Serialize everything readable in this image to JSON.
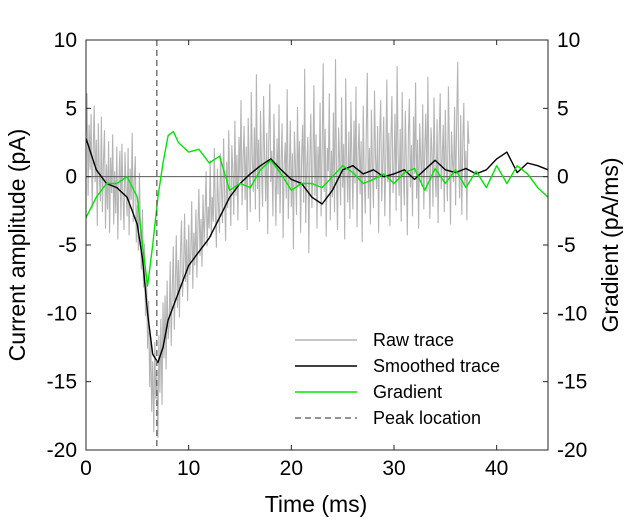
{
  "chart_data": {
    "type": "line",
    "xlabel": "Time (ms)",
    "ylabel_left": "Current amplitude (pA)",
    "ylabel_right": "Gradient (pA/ms)",
    "xlim": [
      0,
      45
    ],
    "ylim_left": [
      -20,
      10
    ],
    "ylim_right": [
      -20,
      10
    ],
    "xticks": [
      "0",
      "10",
      "20",
      "30",
      "40"
    ],
    "yticks_left": [
      "-20",
      "-15",
      "-10",
      "-5",
      "0",
      "5",
      "10"
    ],
    "yticks_right": [
      "-20",
      "-15",
      "-10",
      "-5",
      "0",
      "5",
      "10"
    ],
    "zero_line": true,
    "grid": false,
    "legend_position": "bottom-right",
    "legend": [
      "Raw trace",
      "Smoothed trace",
      "Gradient",
      "Peak location"
    ],
    "colors": {
      "raw": "#b4b4b4",
      "smoothed": "#000000",
      "gradient": "#00e600",
      "peak": "#555555",
      "axes": "#262626"
    },
    "peak_location_x": 6.9,
    "series": [
      {
        "name": "Smoothed trace",
        "axis": "left",
        "x": [
          0,
          1,
          2,
          3,
          4,
          5,
          5.5,
          6,
          6.5,
          7,
          7.5,
          8,
          9,
          10,
          11,
          12,
          13,
          14,
          15,
          16,
          17,
          18,
          19,
          20,
          21,
          22,
          23,
          24,
          25,
          26,
          27,
          28,
          29,
          30,
          31,
          32,
          33,
          34,
          35,
          36,
          37,
          38,
          39,
          40,
          41,
          42,
          43,
          44,
          45
        ],
        "y": [
          2.8,
          0.5,
          -0.5,
          -0.8,
          -1.5,
          -3.5,
          -6,
          -10,
          -13,
          -13.6,
          -12.5,
          -10.5,
          -8.5,
          -6.5,
          -5.5,
          -4.5,
          -3,
          -1.5,
          -0.5,
          0.2,
          0.8,
          1.3,
          0.5,
          -0.2,
          -0.5,
          -1.5,
          -2,
          -1,
          0.5,
          0.8,
          0.2,
          0.5,
          0,
          0.2,
          0.5,
          -0.2,
          0.5,
          1.2,
          0.5,
          0.3,
          0.6,
          0.2,
          0.5,
          1.3,
          1.8,
          0.3,
          1,
          0.8,
          0.5
        ]
      },
      {
        "name": "Gradient",
        "axis": "right",
        "x": [
          0,
          1,
          2,
          3,
          4,
          5,
          5.5,
          6,
          6.5,
          7,
          7.5,
          8,
          8.5,
          9,
          10,
          11,
          12,
          13,
          14,
          15,
          16,
          17,
          18,
          19,
          20,
          21,
          22,
          23,
          24,
          25,
          26,
          27,
          28,
          29,
          30,
          31,
          32,
          33,
          34,
          35,
          36,
          37,
          38,
          39,
          40,
          41,
          42,
          43,
          44,
          45
        ],
        "y": [
          -3,
          -1.5,
          -0.5,
          -0.5,
          0,
          -1.5,
          -5,
          -8,
          -5,
          -1.5,
          1,
          3,
          3.3,
          2.5,
          1.8,
          2,
          1,
          1.5,
          -1,
          -0.5,
          -0.8,
          0.5,
          1.2,
          0.2,
          -1,
          -0.5,
          -0.5,
          -0.8,
          0,
          0.8,
          0.3,
          -0.5,
          -0.2,
          0.2,
          -0.5,
          0.3,
          0.6,
          -1,
          0.6,
          -0.5,
          0.5,
          -0.8,
          0.4,
          -0.8,
          0.8,
          -0.5,
          0.8,
          0.2,
          -0.8,
          -1.5
        ]
      }
    ],
    "raw_trace": {
      "name": "Raw trace",
      "axis": "left",
      "x_start": 0,
      "x_step": 0.1,
      "y": [
        2.5,
        6.1,
        -1.4,
        3.8,
        0.5,
        4.6,
        -2.3,
        1.8,
        5.2,
        -0.4,
        2.7,
        -3.6,
        3.9,
        0.2,
        -1.8,
        4.4,
        -2.6,
        1.2,
        3.4,
        -3.8,
        0.9,
        -2.4,
        2.6,
        -4.1,
        1.4,
        -1.2,
        3.1,
        -3.5,
        0.4,
        -2.7,
        2.2,
        -4.6,
        -0.3,
        1.9,
        -3.2,
        2.4,
        -1.5,
        -3.9,
        1.8,
        -0.8,
        -2.9,
        2.1,
        -4.3,
        0.6,
        -1.7,
        3.2,
        -3.3,
        -0.2,
        1.5,
        -4.8,
        -2.1,
        -5.4,
        0.3,
        -3.6,
        -6.8,
        -2.4,
        -8.1,
        -4.9,
        -10.2,
        -7.3,
        -12.6,
        -9.1,
        -15.4,
        -11.8,
        -17.2,
        -13.5,
        -18.7,
        -12.1,
        -16.3,
        -14.4,
        -19.1,
        -11.6,
        -15.8,
        -10.4,
        -16.7,
        -9.2,
        -13.3,
        -8.7,
        -14.1,
        -7.6,
        -11.9,
        -10.8,
        -6.2,
        -12.4,
        -8.4,
        -5.1,
        -11.2,
        -7.9,
        -4.3,
        -9.6,
        -6.1,
        -10.3,
        -5.4,
        -3.2,
        -8.8,
        -6.9,
        -2.7,
        -7.7,
        -4.6,
        -9.1,
        -3.5,
        -7.2,
        -5.9,
        -1.8,
        -8.2,
        -4.1,
        -6.5,
        -2.4,
        -7.4,
        -3.7,
        -0.9,
        -5.8,
        -3.1,
        -6.6,
        -1.3,
        -4.9,
        -2.6,
        0.4,
        -5.1,
        -2.2,
        -3.8,
        1.2,
        -4.4,
        -1.5,
        -3.3,
        2.1,
        -2.8,
        -5.2,
        0.6,
        -1.9,
        -4.1,
        1.7,
        -0.8,
        -3.4,
        2.8,
        -1.2,
        -4.7,
        1.1,
        -2.3,
        3.4,
        -0.6,
        -3.6,
        2.3,
        0.5,
        -2.8,
        4.1,
        -1.4,
        1.6,
        -3.2,
        2.9,
        -0.3,
        5.6,
        -2.1,
        1.3,
        3.7,
        -1.7,
        2.2,
        -3.9,
        4.3,
        0.8,
        -2.6,
        6.2,
        1.4,
        -1.1,
        3.6,
        -2.4,
        7.5,
        -0.9,
        2.7,
        -3.3,
        4.8,
        0.3,
        -2.2,
        5.9,
        1.6,
        -1.8,
        3.2,
        -4.2,
        2.4,
        6.8,
        -0.4,
        1.9,
        -2.9,
        4.6,
        0.7,
        -3.6,
        2.8,
        -1.3,
        5.3,
        -2.7,
        1.1,
        3.9,
        -4.5,
        0.6,
        2.5,
        -1.6,
        6.4,
        -3.1,
        0.2,
        4.1,
        -2.2,
        1.7,
        -5.3,
        3.3,
        0.9,
        -2.8,
        5.1,
        -0.7,
        2.6,
        -4.1,
        1.4,
        3.8,
        -1.9,
        7.9,
        -3.4,
        0.5,
        2.9,
        -5.6,
        1.2,
        4.6,
        -2.3,
        0.8,
        6.7,
        -1.4,
        3.1,
        -3.8,
        2.2,
        -0.6,
        5.4,
        -2.9,
        1.6,
        8.3,
        -1.1,
        3.5,
        -4.4,
        2.1,
        0.4,
        6.1,
        -3.2,
        1.9,
        -1.5,
        4.7,
        -2.6,
        8.6,
        0.3,
        -3.9,
        3.6,
        1.1,
        -2.1,
        5.8,
        -0.8,
        2.4,
        -4.6,
        7.2,
        0.6,
        -1.9,
        3.3,
        -3.1,
        5.5,
        1.2,
        -2.4,
        4.1,
        -0.5,
        6.6,
        -3.7,
        1.8,
        3.9,
        -1.3,
        2.6,
        -4.8,
        5.2,
        0.1,
        -2.7,
        3.4,
        7.6,
        -1.6,
        2.1,
        -3.5,
        4.9,
        0.7,
        -2.3,
        6.3,
        1.5,
        -0.9,
        3.7,
        -4.1,
        2.8,
        5.6,
        -1.8,
        0.9,
        4.4,
        -2.9,
        1.3,
        7.1,
        -0.4,
        3.2,
        -3.6,
        2.5,
        5.9,
        -1.2,
        0.6,
        4.6,
        -2.5,
        8.1,
        1.7,
        -1.4,
        3.5,
        -3.3,
        6.2,
        0.8,
        -2.1,
        4.8,
        1.1,
        -4.3,
        3.1,
        5.7,
        -0.8,
        2.3,
        -2.9,
        4.4,
        0.2,
        6.9,
        -1.6,
        2.7,
        -3.8,
        3.9,
        1.4,
        -0.7,
        5.3,
        -2.4,
        2.1,
        4.6,
        -1.1,
        7.3,
        0.5,
        -3.1,
        3.6,
        1.8,
        -2.2,
        5.8,
        0.3,
        -1.5,
        4.2,
        -3.4,
        2.9,
        6.1,
        -0.9,
        1.6,
        3.8,
        -2.6,
        4.9,
        0.7,
        -1.8,
        6.6,
        2.2,
        -3.5,
        3.3,
        1.2,
        -0.4,
        5.1,
        -2.1,
        3.7,
        8.4,
        0.9,
        -1.6,
        4.5,
        -2.8,
        2.6,
        5.4,
        -0.6,
        1.9,
        -3.2,
        4.1,
        2.4
      ]
    }
  }
}
